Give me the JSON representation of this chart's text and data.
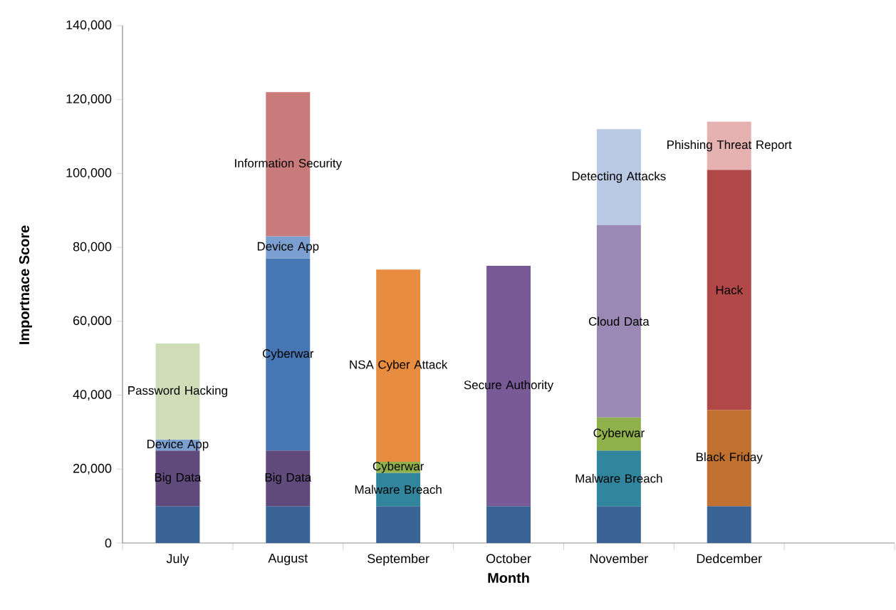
{
  "chart_data": {
    "type": "bar",
    "stacked": true,
    "xlabel": "Month",
    "ylabel": "Importnace Score",
    "categories": [
      "July",
      "August",
      "September",
      "October",
      "November",
      "Dedcember",
      null
    ],
    "ylim": [
      0,
      140000
    ],
    "yticks": [
      {
        "value": 0,
        "label": "0"
      },
      {
        "value": 20000,
        "label": "20,000"
      },
      {
        "value": 40000,
        "label": "40,000"
      },
      {
        "value": 60000,
        "label": "60,000"
      },
      {
        "value": 80000,
        "label": "80,000"
      },
      {
        "value": 100000,
        "label": "100,000"
      },
      {
        "value": 120000,
        "label": "120,000"
      },
      {
        "value": 140000,
        "label": "140,000"
      }
    ],
    "grid": false,
    "series": [
      {
        "values": [
          10000,
          10000,
          10000,
          10000,
          10000,
          10000,
          null
        ],
        "colors": [
          "#3a6496",
          "#3a6496",
          "#3a6496",
          "#3a6496",
          "#3a6496",
          "#3a6496",
          "#3a6496"
        ]
      },
      {
        "values": [
          15000,
          15000,
          9000,
          65000,
          15000,
          26000,
          null
        ],
        "colors": [
          "#604a7b",
          "#604a7b",
          "#31859c",
          "#775a96",
          "#31859c",
          "#c0712f",
          "#604a7b"
        ],
        "value_labels": [
          "Big Data",
          "Big Data",
          "Malware Breach",
          "Secure Authority",
          "Malware Breach",
          "Black Friday",
          null
        ]
      },
      {
        "values": [
          3000,
          52000,
          3000,
          null,
          9000,
          65000,
          null
        ],
        "colors": [
          "#7a9fd0",
          "#4676b4",
          "#8fb04a",
          "#8fb04a",
          "#8fb04a",
          "#b04848",
          "#7a9fd0"
        ],
        "value_labels": [
          "Device App",
          "Cyberwar",
          "Cyberwar",
          null,
          "Cyberwar",
          "Hack",
          null
        ]
      },
      {
        "values": [
          26000,
          6000,
          52000,
          null,
          52000,
          13000,
          null
        ],
        "colors": [
          "#d0ddb8",
          "#7a9fd0",
          "#e88c3f",
          "#e88c3f",
          "#9b88b5",
          "#e5b1b1",
          "#d0ddb8"
        ],
        "value_labels": [
          "Password Hacking",
          "Device App",
          "NSA Cyber Attack",
          null,
          "Cloud Data",
          "Phishing Threat Report",
          null
        ]
      },
      {
        "values": [
          null,
          39000,
          null,
          null,
          26000,
          null,
          null
        ],
        "colors": [
          "#c97a7a",
          "#c97a7a",
          "#c97a7a",
          "#c97a7a",
          "#b9c9e3",
          "#c97a7a",
          "#c97a7a"
        ],
        "value_labels": [
          null,
          "Information Security",
          null,
          null,
          "Detecting Attacks",
          null,
          null
        ]
      }
    ]
  }
}
